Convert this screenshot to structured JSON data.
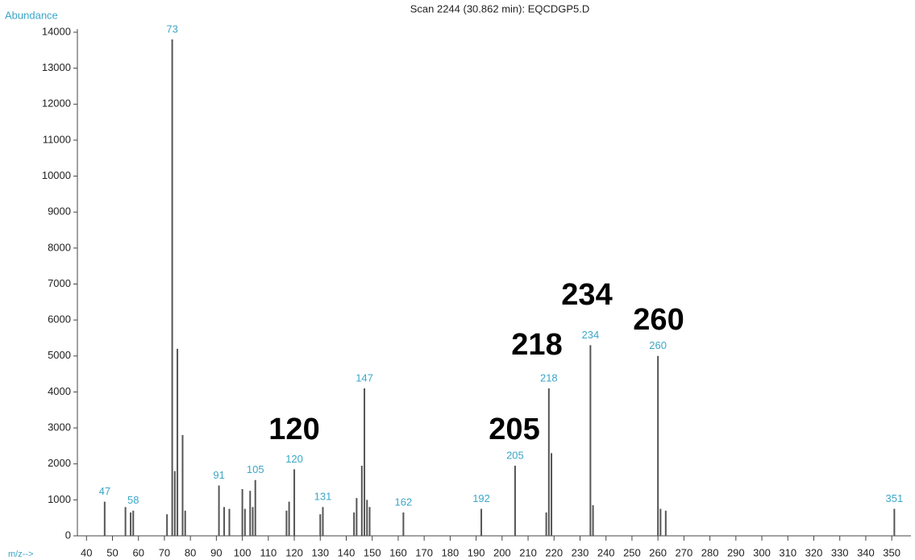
{
  "chart_data": {
    "type": "stem",
    "title": "Scan 2244 (30.862 min): EQCDGP5.D",
    "y_label": "Abundance",
    "x_label": "m/z-->",
    "x": [
      47,
      55,
      57,
      58,
      71,
      73,
      74,
      75,
      77,
      78,
      91,
      93,
      95,
      100,
      101,
      103,
      104,
      105,
      117,
      118,
      120,
      130,
      131,
      143,
      144,
      146,
      147,
      148,
      149,
      162,
      192,
      205,
      217,
      218,
      219,
      234,
      235,
      260,
      261,
      263,
      351
    ],
    "values": [
      950,
      800,
      650,
      700,
      600,
      13800,
      1800,
      5200,
      2800,
      700,
      1400,
      800,
      750,
      1300,
      750,
      1250,
      800,
      1550,
      700,
      950,
      1850,
      600,
      800,
      650,
      1050,
      1950,
      4100,
      1000,
      800,
      650,
      750,
      1950,
      650,
      4100,
      2300,
      5300,
      850,
      5000,
      750,
      700,
      750
    ],
    "labeled": [
      true,
      false,
      false,
      true,
      false,
      true,
      false,
      false,
      false,
      false,
      true,
      false,
      false,
      false,
      false,
      false,
      false,
      true,
      false,
      false,
      true,
      false,
      true,
      false,
      false,
      false,
      true,
      false,
      false,
      true,
      true,
      true,
      false,
      true,
      false,
      true,
      false,
      true,
      false,
      false,
      true
    ],
    "color": "#555555",
    "label_color": "#3aa6c8",
    "xlim": [
      36.5,
      357
    ],
    "ylim": [
      0,
      14000
    ],
    "xticks": [
      40,
      50,
      60,
      70,
      80,
      90,
      100,
      110,
      120,
      130,
      140,
      150,
      160,
      170,
      180,
      190,
      200,
      210,
      220,
      230,
      240,
      250,
      260,
      270,
      280,
      290,
      300,
      310,
      320,
      330,
      340,
      350
    ],
    "yticks": [
      0,
      1000,
      2000,
      3000,
      4000,
      5000,
      6000,
      7000,
      8000,
      9000,
      10000,
      11000,
      12000,
      13000,
      14000
    ],
    "annotations": [
      "120",
      "205",
      "218",
      "234",
      "260"
    ]
  }
}
